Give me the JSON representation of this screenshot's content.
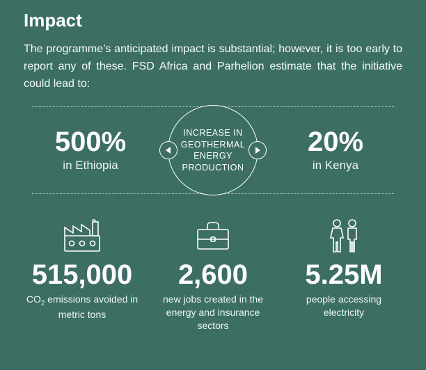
{
  "colors": {
    "background": "#3c6e63",
    "text": "#ffffff",
    "muted": "#eaf4f1",
    "dash": "#a9c7bf"
  },
  "typography": {
    "family": "Segoe UI / Helvetica Neue / Arial",
    "title_size_pt": 20,
    "body_size_pt": 12,
    "bignum_size_pt": 30,
    "label_size_pt": 10.5
  },
  "title": "Impact",
  "intro": "The programme’s anticipated impact is substantial; however, it is too early to report any of these. FSD Africa and Parhelion estimate that the initiative could lead to:",
  "hero": {
    "center_label": "INCREASE IN GEOTHERMAL ENERGY PRODUCTION",
    "left": {
      "value": "500%",
      "location": "in Ethiopia"
    },
    "right": {
      "value": "20%",
      "location": "in Kenya"
    },
    "arrow_left_name": "arrow-left-icon",
    "arrow_right_name": "arrow-right-icon",
    "circle_border_color": "#ffffff"
  },
  "stats": [
    {
      "icon": "factory-icon",
      "value": "515,000",
      "label_html": "CO<sub>2</sub> emissions avoided in metric tons"
    },
    {
      "icon": "briefcase-icon",
      "value": "2,600",
      "label_html": "new jobs created in the energy and insurance sectors"
    },
    {
      "icon": "people-icon",
      "value": "5.25M",
      "label_html": "people accessing electricity"
    }
  ]
}
